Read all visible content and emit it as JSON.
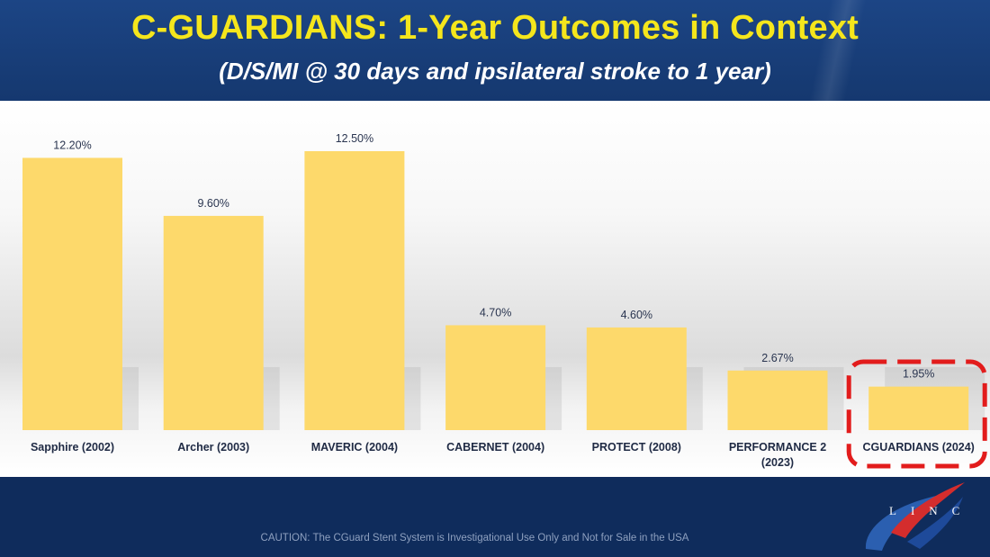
{
  "slide": {
    "title": "C-GUARDIANS: 1-Year Outcomes in Context",
    "subtitle": "(D/S/MI @ 30 days and ipsilateral stroke to 1 year)",
    "caution": "CAUTION: The CGuard Stent System is Investigational Use Only and Not for Sale in the USA",
    "logo_text": "LINC"
  },
  "colors": {
    "title": "#f5e61c",
    "bar": "#fdd96b",
    "highlight": "#e21c1c",
    "background": "#0f2c5c"
  },
  "chart_data": {
    "type": "bar",
    "title": "C-GUARDIANS: 1-Year Outcomes in Context",
    "subtitle": "(D/S/MI @ 30 days and ipsilateral stroke to 1 year)",
    "xlabel": "",
    "ylabel": "",
    "ylim": [
      0,
      14
    ],
    "grid": false,
    "categories": [
      [
        "Sapphire (2002)"
      ],
      [
        "Archer (2003)"
      ],
      [
        "MAVERIC (2004)"
      ],
      [
        "CABERNET (2004)"
      ],
      [
        "PROTECT (2008)"
      ],
      [
        "PERFORMANCE 2",
        "(2023)"
      ],
      [
        "CGUARDIANS (2024)"
      ]
    ],
    "values": [
      12.2,
      9.6,
      12.5,
      4.7,
      4.6,
      2.67,
      1.95
    ],
    "value_labels": [
      "12.20%",
      "9.60%",
      "12.50%",
      "4.70%",
      "4.60%",
      "2.67%",
      "1.95%"
    ],
    "highlighted_category": "CGUARDIANS (2024)"
  }
}
